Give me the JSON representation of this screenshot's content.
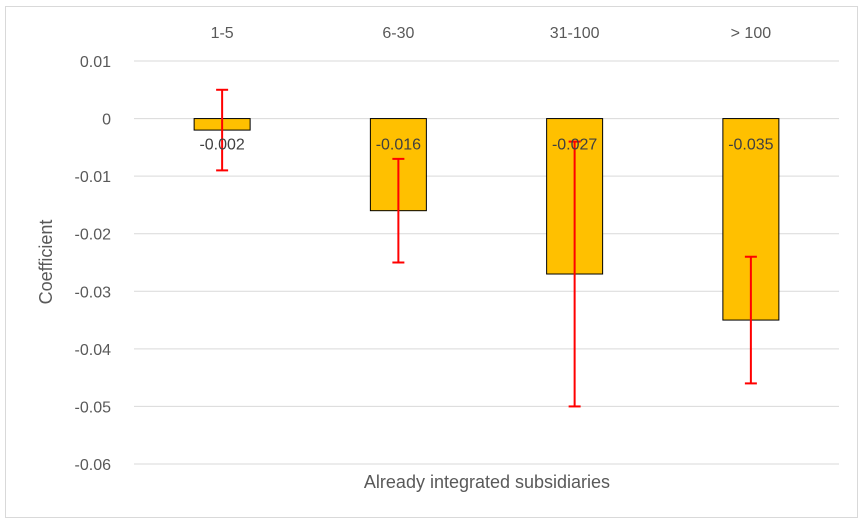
{
  "chart_data": {
    "type": "bar",
    "title": "",
    "xlabel": "Already integrated subsidiaries",
    "ylabel": "Coefficient",
    "categories": [
      "1-5",
      "6-30",
      "31-100",
      "> 100"
    ],
    "values": [
      -0.002,
      -0.016,
      -0.027,
      -0.035
    ],
    "data_labels": [
      "-0.002",
      "-0.016",
      "-0.027",
      "-0.035"
    ],
    "error_bars": [
      {
        "low": -0.009,
        "high": 0.005
      },
      {
        "low": -0.025,
        "high": -0.007
      },
      {
        "low": -0.05,
        "high": -0.004
      },
      {
        "low": -0.046,
        "high": -0.024
      }
    ],
    "ylim": [
      -0.06,
      0.01
    ],
    "yticks": [
      0.01,
      0,
      -0.01,
      -0.02,
      -0.03,
      -0.04,
      -0.05,
      -0.06
    ],
    "ytick_labels": [
      "0.01",
      "0",
      "-0.01",
      "-0.02",
      "-0.03",
      "-0.04",
      "-0.05",
      "-0.06"
    ],
    "category_axis_position": "top",
    "grid": true,
    "legend": "none",
    "colors": {
      "bar_fill": "#FFC000",
      "bar_stroke": "#000000",
      "error_bar": "#FF0000",
      "grid": "#d9d9d9"
    }
  }
}
